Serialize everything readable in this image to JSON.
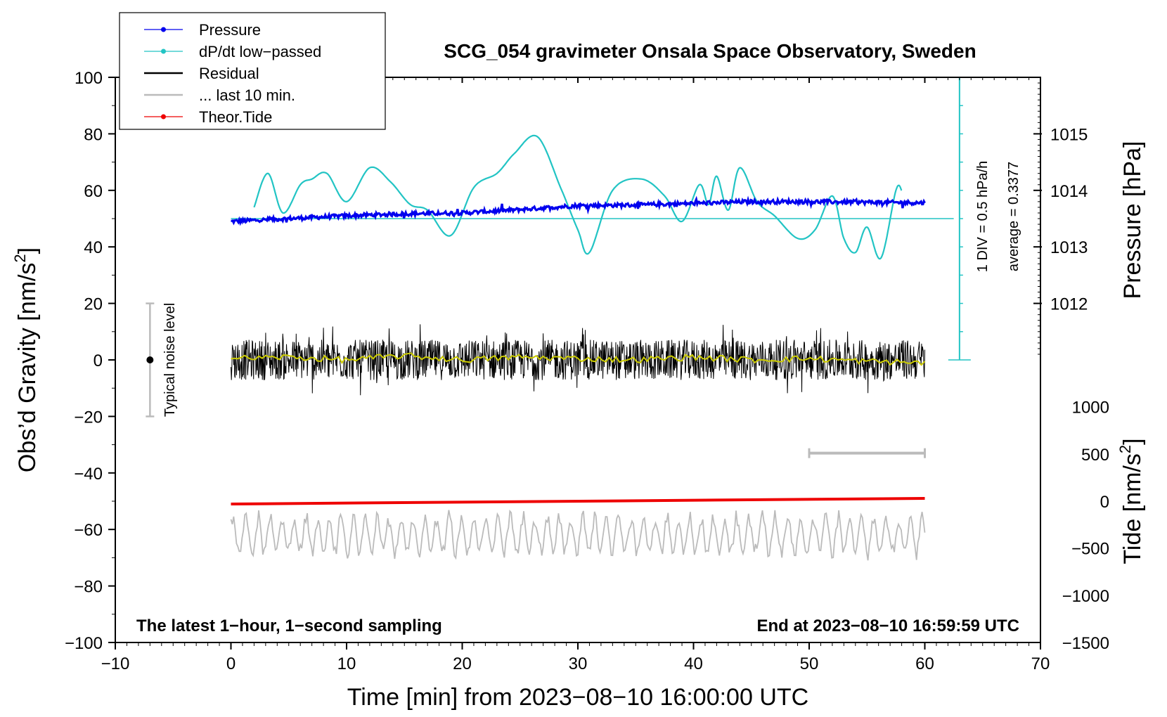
{
  "chart_data": {
    "type": "line",
    "title": "SCG_054 gravimeter Onsala Space Observatory, Sweden",
    "xlabel": "Time [min] from 2023−08−10 16:00:00 UTC",
    "ylabel": "Obs’d Gravity [nm/s",
    "ylabel_sup": "2",
    "ylabel_end": "]",
    "y2label_pressure": "Pressure [hPa]",
    "y2label_tide": "Tide [nm/s",
    "y2label_tide_sup": "2",
    "y2label_tide_end": "]",
    "xlim": [
      -10,
      70
    ],
    "ylim": [
      -100,
      100
    ],
    "x_ticks": [
      -10,
      0,
      10,
      20,
      30,
      40,
      50,
      60,
      70
    ],
    "x_tick_labels": [
      "−10",
      "0",
      "10",
      "20",
      "30",
      "40",
      "50",
      "60",
      "70"
    ],
    "y_ticks": [
      -100,
      -80,
      -60,
      -40,
      -20,
      0,
      20,
      40,
      60,
      80,
      100
    ],
    "y_tick_labels": [
      "−100",
      "−80",
      "−60",
      "−40",
      "−20",
      "0",
      "20",
      "40",
      "60",
      "80",
      "100"
    ],
    "pressure_axis": {
      "ticks": [
        1012,
        1013,
        1014,
        1015
      ],
      "tick_labels": [
        "1012",
        "1013",
        "1014",
        "1015"
      ],
      "gravity_equivalent": [
        20,
        40,
        60,
        80
      ]
    },
    "tide_axis": {
      "ticks": [
        1000,
        500,
        0,
        -500,
        -1000,
        -1500
      ],
      "tick_labels": [
        "1000",
        "500",
        "0",
        "−500",
        "−1000",
        "−1500"
      ],
      "gravity_equivalent": [
        -16.6,
        -33.3,
        -50,
        -66.6,
        -83.3,
        -100
      ]
    },
    "legend": [
      {
        "label": "Pressure",
        "color": "#0000ee",
        "style": "line-dot"
      },
      {
        "label": "dP/dt low−passed",
        "color": "#22c4c4",
        "style": "line-dot"
      },
      {
        "label": "Residual",
        "color": "#000000",
        "style": "line"
      },
      {
        "label": "... last 10 min.",
        "color": "#bbbbbb",
        "style": "line"
      },
      {
        "label": "Theor.Tide",
        "color": "#ee0000",
        "style": "line-dot"
      }
    ],
    "series": [
      {
        "name": "Pressure",
        "color": "#0000ee",
        "x": [
          0,
          5,
          10,
          15,
          20,
          25,
          30,
          35,
          40,
          45,
          50,
          55,
          60
        ],
        "y": [
          49,
          50,
          51,
          51.7,
          52,
          53.2,
          54.6,
          54.8,
          55.4,
          56,
          56,
          55.8,
          55.6
        ]
      },
      {
        "name": "dP/dt low−passed",
        "color": "#22c4c4",
        "x": [
          2,
          3.2,
          4.5,
          6,
          7,
          8.3,
          10,
          12,
          13.8,
          15.5,
          17,
          19,
          21,
          23,
          24.5,
          26.5,
          28.5,
          30,
          31,
          33,
          35.5,
          37.5,
          39,
          40.5,
          41.3,
          42,
          43,
          44,
          45.5,
          47,
          49,
          50.5,
          52,
          53,
          54,
          55,
          56.2,
          57.5,
          58
        ],
        "y": [
          54,
          66,
          52,
          62,
          64,
          66,
          56,
          68,
          63,
          55,
          53,
          44,
          61,
          66,
          73,
          79,
          61,
          46,
          38,
          60,
          64,
          58,
          49,
          62,
          55,
          65,
          53,
          68,
          56,
          51,
          43,
          46,
          58,
          43,
          38,
          47,
          36,
          60,
          60
        ]
      },
      {
        "name": "dP/dt reference",
        "color": "#22c4c4",
        "x": [
          0,
          62.5
        ],
        "y": [
          50,
          50
        ]
      },
      {
        "name": "Residual",
        "color": "#000000",
        "x": [
          0,
          60
        ],
        "y": [
          0,
          0
        ],
        "noise_amplitude": 13
      },
      {
        "name": "Residual smoothed",
        "color": "#cccc00",
        "x": [
          0,
          5,
          10,
          15,
          20,
          25,
          30,
          35,
          40,
          45,
          50,
          55,
          60
        ],
        "y": [
          0.5,
          1,
          0,
          1.5,
          0,
          1,
          0.5,
          0,
          1,
          0,
          0.5,
          -0.5,
          -1
        ]
      },
      {
        "name": "... last 10 min.",
        "color": "#bbbbbb",
        "x": [
          0,
          60
        ],
        "y": [
          -62,
          -62
        ],
        "noise_amplitude": 9
      },
      {
        "name": "Theor.Tide",
        "color": "#ee0000",
        "x": [
          0,
          60
        ],
        "y": [
          -51,
          -49
        ]
      }
    ],
    "annotations": {
      "noise_label": "Typical noise level",
      "noise_bar": {
        "x": -7,
        "ymin": -20,
        "ymax": 20,
        "center": 0
      },
      "scale_bar": {
        "x": 63,
        "ymin": 0,
        "ymax": 100,
        "divisions": 10
      },
      "scale_label_1": "1 DIV = 0.5 hPa/h",
      "scale_label_2": "average = 0.3377",
      "window_bar": {
        "xmin": 50,
        "xmax": 60,
        "y": -33
      },
      "bottom_left": "The latest 1−hour, 1−second sampling",
      "bottom_right": "End at 2023−08−10 16:59:59 UTC"
    }
  }
}
